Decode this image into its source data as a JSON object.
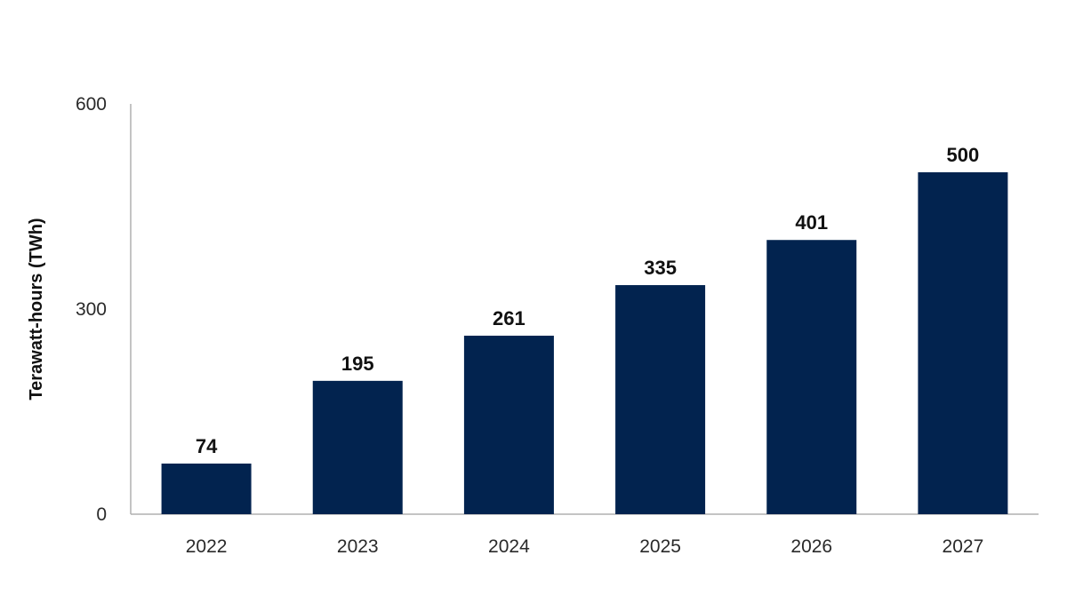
{
  "chart_data": {
    "type": "bar",
    "title": "",
    "xlabel": "",
    "ylabel": "Terawatt-hours (TWh)",
    "categories": [
      "2022",
      "2023",
      "2024",
      "2025",
      "2026",
      "2027"
    ],
    "values": [
      74,
      195,
      261,
      335,
      401,
      500
    ],
    "data_labels": [
      "74",
      "195",
      "261",
      "335",
      "401",
      "500"
    ],
    "ylim": [
      0,
      600
    ],
    "yticks": [
      "0",
      "300",
      "600"
    ],
    "ytick_values": [
      0,
      300,
      600
    ],
    "grid": false,
    "legend": "none",
    "colors": {
      "bar": "#02234f",
      "axis": "#b0b0b0",
      "text": "#111111"
    }
  }
}
